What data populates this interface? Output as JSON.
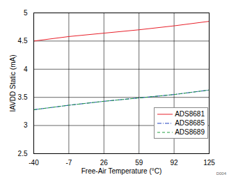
{
  "chart_data": {
    "type": "line",
    "x_label": "Free-Air Temperature (°C)",
    "y_label": "IAVDD Static (mA)",
    "x": [
      -40,
      -7,
      26,
      59,
      92,
      125
    ],
    "series": [
      {
        "name": "ADS8681",
        "color": "#e8202a",
        "line_style": "solid",
        "values": [
          4.5,
          4.58,
          4.64,
          4.7,
          4.77,
          4.85
        ]
      },
      {
        "name": "ADS8685",
        "color": "#2040c0",
        "line_style": "dashdot",
        "values": [
          3.28,
          3.36,
          3.43,
          3.49,
          3.55,
          3.63
        ]
      },
      {
        "name": "ADS8689",
        "color": "#20a040",
        "line_style": "dashed",
        "values": [
          3.28,
          3.36,
          3.43,
          3.49,
          3.55,
          3.63
        ]
      }
    ],
    "xlim": [
      -40,
      125
    ],
    "xticks": [
      -40,
      -7,
      26,
      59,
      92,
      125
    ],
    "ylim": [
      2.5,
      5
    ],
    "yticks": [
      2.5,
      3,
      3.5,
      4,
      4.5,
      5
    ],
    "grid": true,
    "legend": "bottom-right",
    "annotation": "D004"
  }
}
